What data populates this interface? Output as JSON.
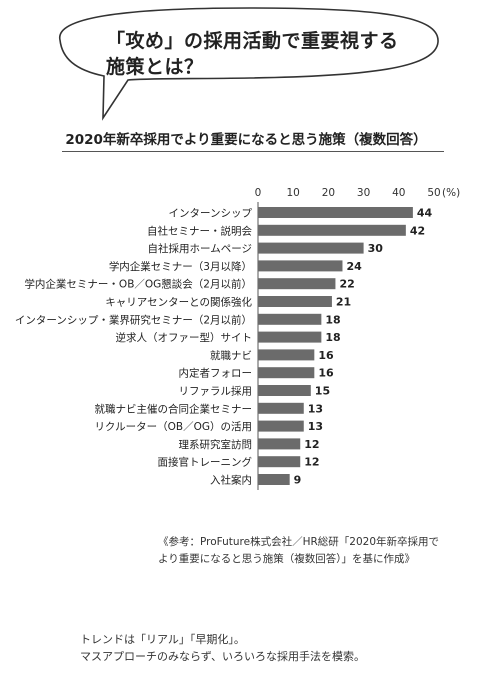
{
  "callout": {
    "line1": "「攻め」の採用活動で重要視する",
    "line2": "施策とは？"
  },
  "chart_data": {
    "type": "bar",
    "orientation": "horizontal",
    "title": "2020年新卒採用でより重要になると思う施策（複数回答）",
    "x_ticks": [
      "0",
      "10",
      "20",
      "30",
      "40",
      "50"
    ],
    "x_unit": "(%)",
    "xlim": [
      0,
      50
    ],
    "categories": [
      "インターンシップ",
      "自社セミナー・説明会",
      "自社採用ホームページ",
      "学内企業セミナー（3月以降）",
      "学内企業セミナー・OB／OG懇談会（2月以前）",
      "キャリアセンターとの関係強化",
      "インターンシップ・業界研究セミナー（2月以前）",
      "逆求人（オファー型）サイト",
      "就職ナビ",
      "内定者フォロー",
      "リファラル採用",
      "就職ナビ主催の合同企業セミナー",
      "リクルーター（OB／OG）の活用",
      "理系研究室訪問",
      "面接官トレーニング",
      "入社案内"
    ],
    "values": [
      44,
      42,
      30,
      24,
      22,
      21,
      18,
      18,
      16,
      16,
      15,
      13,
      13,
      12,
      12,
      9
    ]
  },
  "source": {
    "line1": "《参考：ProFuture株式会社／HR総研「2020年新卒採用で",
    "line2": "より重要になると思う施策（複数回答）」を基に作成》"
  },
  "footer": {
    "line1": "トレンドは「リアル」「早期化」。",
    "line2": "マスアプローチのみならず、いろいろな採用手法を模索。"
  }
}
